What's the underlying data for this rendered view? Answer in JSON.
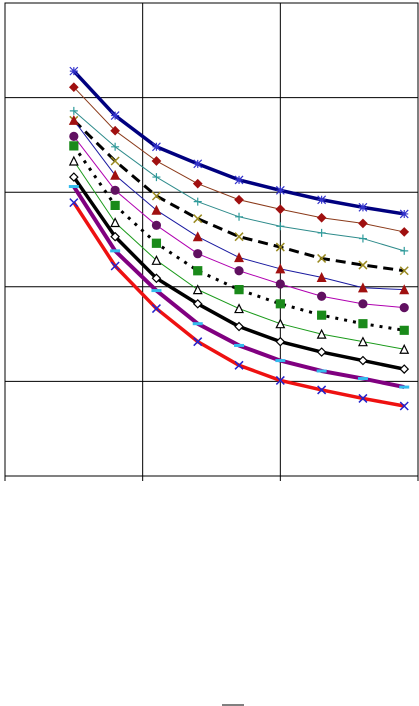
{
  "chart_data": {
    "type": "line",
    "x": [
      0.5,
      0.8,
      1.1,
      1.4,
      1.7,
      2.0,
      2.3,
      2.6,
      2.9
    ],
    "xlim": [
      0,
      3
    ],
    "xticks": [
      0,
      1,
      2,
      3
    ],
    "ylim": [
      0,
      5
    ],
    "yticks": [
      0,
      1,
      2,
      3,
      4,
      5
    ],
    "grid": true,
    "series": [
      {
        "color": "#00007f",
        "width": 3.5,
        "dash": "none",
        "marker": "asterisk",
        "marker_color": "#3333cc",
        "values": [
          4.28,
          3.81,
          3.48,
          3.3,
          3.13,
          3.02,
          2.92,
          2.84,
          2.77
        ]
      },
      {
        "color": "#8b3a1a",
        "width": 1,
        "dash": "none",
        "marker": "diamond",
        "marker_color": "#a01010",
        "values": [
          4.11,
          3.65,
          3.33,
          3.09,
          2.92,
          2.82,
          2.73,
          2.67,
          2.58
        ]
      },
      {
        "color": "#2e8b8b",
        "width": 1,
        "dash": "none",
        "marker": "plus",
        "marker_color": "#2e9b9b",
        "values": [
          3.86,
          3.48,
          3.16,
          2.9,
          2.74,
          2.64,
          2.57,
          2.51,
          2.38
        ]
      },
      {
        "color": "#000000",
        "width": 3,
        "dash": "10 6",
        "marker": "cross",
        "marker_color": "#9a8a20",
        "values": [
          3.76,
          3.33,
          2.96,
          2.72,
          2.53,
          2.42,
          2.3,
          2.23,
          2.17
        ]
      },
      {
        "color": "#1a1aa0",
        "width": 1,
        "dash": "none",
        "marker": "triangle",
        "marker_color": "#a01010",
        "values": [
          3.76,
          3.18,
          2.81,
          2.53,
          2.31,
          2.19,
          2.1,
          1.99,
          1.97
        ]
      },
      {
        "color": "#b000b0",
        "width": 1,
        "dash": "none",
        "marker": "circle",
        "marker_color": "#601060",
        "values": [
          3.59,
          3.02,
          2.65,
          2.35,
          2.17,
          2.03,
          1.9,
          1.82,
          1.78
        ]
      },
      {
        "color": "#000000",
        "width": 3,
        "dash": "3 6",
        "marker": "square",
        "marker_color": "#1a8a1a",
        "values": [
          3.49,
          2.86,
          2.46,
          2.17,
          1.97,
          1.82,
          1.7,
          1.61,
          1.54
        ]
      },
      {
        "color": "#1a9a1a",
        "width": 1,
        "dash": "none",
        "marker": "triangle-open",
        "marker_color": "#000000",
        "values": [
          3.33,
          2.68,
          2.28,
          1.97,
          1.77,
          1.61,
          1.5,
          1.42,
          1.34
        ]
      },
      {
        "color": "#000000",
        "width": 3.5,
        "dash": "none",
        "marker": "diamond-open",
        "marker_color": "#000000",
        "values": [
          3.16,
          2.53,
          2.09,
          1.82,
          1.58,
          1.42,
          1.31,
          1.22,
          1.13
        ]
      },
      {
        "color": "#800080",
        "width": 4,
        "dash": "none",
        "marker": "dash",
        "marker_color": "#33bbee",
        "values": [
          3.06,
          2.38,
          1.96,
          1.61,
          1.38,
          1.22,
          1.11,
          1.03,
          0.94
        ]
      },
      {
        "color": "#ee1111",
        "width": 3.5,
        "dash": "none",
        "marker": "cross",
        "marker_color": "#2222cc",
        "values": [
          2.89,
          2.22,
          1.77,
          1.42,
          1.17,
          1.01,
          0.91,
          0.82,
          0.74
        ]
      }
    ]
  }
}
